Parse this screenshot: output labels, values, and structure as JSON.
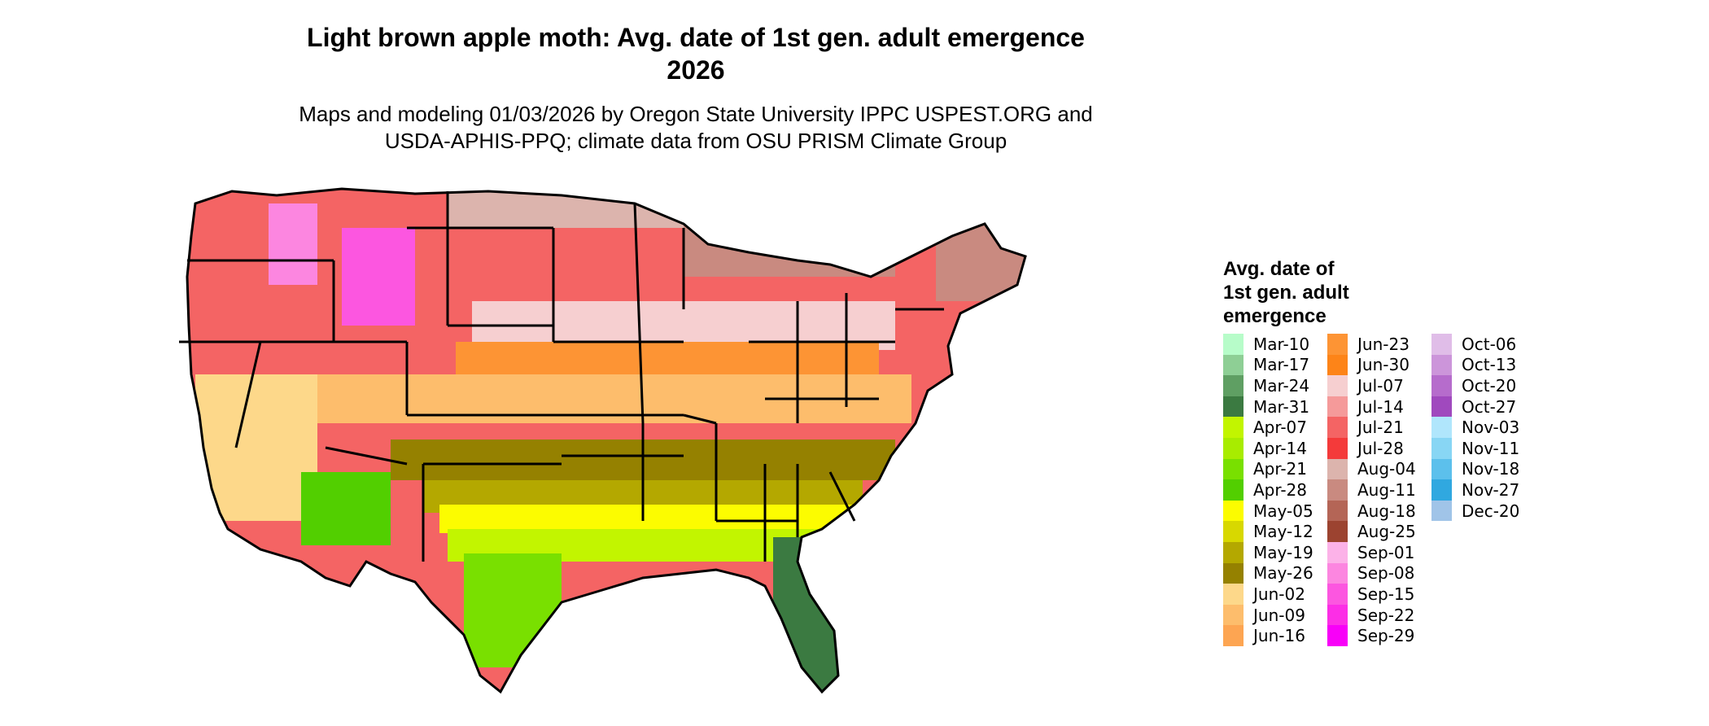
{
  "title": {
    "line1": "Light brown apple moth: Avg. date of 1st gen. adult emergence",
    "line2": "2026"
  },
  "subtitle": {
    "line1": "Maps and modeling 01/03/2026 by Oregon State University IPPC USPEST.ORG and",
    "line2": "USDA-APHIS-PPQ; climate data from OSU PRISM Climate Group"
  },
  "legend": {
    "title_lines": [
      "Avg. date of",
      "1st gen. adult",
      "emergence"
    ],
    "columns": [
      [
        {
          "label": "Mar-10",
          "color": "#b7fcc9"
        },
        {
          "label": "Mar-17",
          "color": "#8ecf95"
        },
        {
          "label": "Mar-24",
          "color": "#5f9f63"
        },
        {
          "label": "Mar-31",
          "color": "#3b7a41"
        },
        {
          "label": "Apr-07",
          "color": "#c2f500"
        },
        {
          "label": "Apr-14",
          "color": "#a8ec00"
        },
        {
          "label": "Apr-21",
          "color": "#79e000"
        },
        {
          "label": "Apr-28",
          "color": "#52cf00"
        },
        {
          "label": "May-05",
          "color": "#fcfc00"
        },
        {
          "label": "May-12",
          "color": "#d8d800"
        },
        {
          "label": "May-19",
          "color": "#b4a800"
        },
        {
          "label": "May-26",
          "color": "#958100"
        },
        {
          "label": "Jun-02",
          "color": "#fdd88a"
        },
        {
          "label": "Jun-09",
          "color": "#fdbd6c"
        },
        {
          "label": "Jun-16",
          "color": "#fda552"
        }
      ],
      [
        {
          "label": "Jun-23",
          "color": "#fd9434"
        },
        {
          "label": "Jun-30",
          "color": "#fd8418"
        },
        {
          "label": "Jul-07",
          "color": "#f6cfd0"
        },
        {
          "label": "Jul-14",
          "color": "#f59a9a"
        },
        {
          "label": "Jul-21",
          "color": "#f46464"
        },
        {
          "label": "Jul-28",
          "color": "#f43a3a"
        },
        {
          "label": "Aug-04",
          "color": "#dcb4ad"
        },
        {
          "label": "Aug-11",
          "color": "#c98a80"
        },
        {
          "label": "Aug-18",
          "color": "#b46556"
        },
        {
          "label": "Aug-25",
          "color": "#9c4330"
        },
        {
          "label": "Sep-01",
          "color": "#fcb2e8"
        },
        {
          "label": "Sep-08",
          "color": "#fc86e0"
        },
        {
          "label": "Sep-15",
          "color": "#fc56e0"
        },
        {
          "label": "Sep-22",
          "color": "#fc2ee6"
        },
        {
          "label": "Sep-29",
          "color": "#f800f8"
        }
      ],
      [
        {
          "label": "Oct-06",
          "color": "#e0bde8"
        },
        {
          "label": "Oct-13",
          "color": "#cc95da"
        },
        {
          "label": "Oct-20",
          "color": "#b66ccc"
        },
        {
          "label": "Oct-27",
          "color": "#a049be"
        },
        {
          "label": "Nov-03",
          "color": "#b0e6fc"
        },
        {
          "label": "Nov-11",
          "color": "#88d6f4"
        },
        {
          "label": "Nov-18",
          "color": "#5cc0ec"
        },
        {
          "label": "Nov-27",
          "color": "#30a8e0"
        },
        {
          "label": "Dec-20",
          "color": "#a0c4e8"
        }
      ]
    ]
  }
}
